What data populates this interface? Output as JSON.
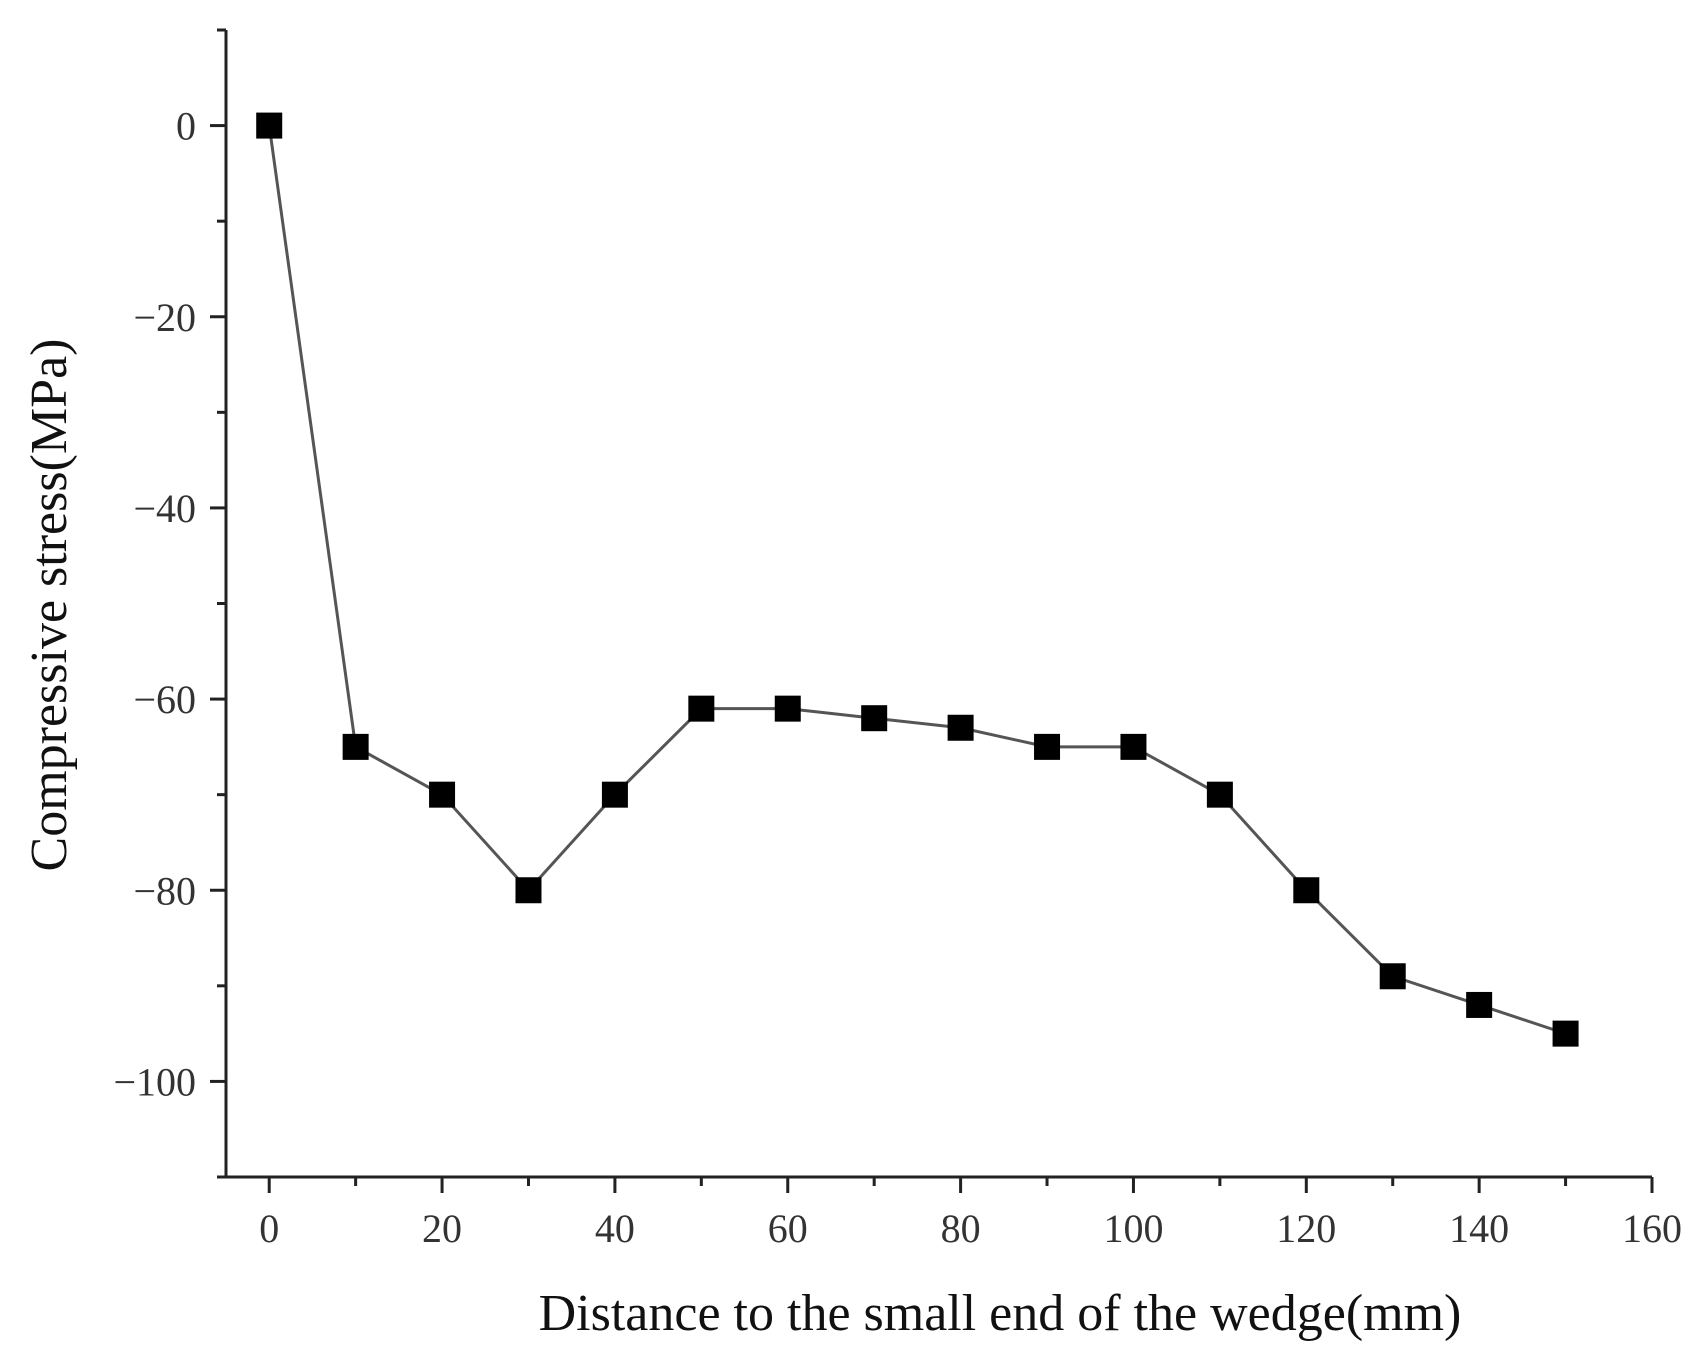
{
  "chart_data": {
    "type": "line",
    "title": "",
    "xlabel": "Distance to the small end of the wedge(mm)",
    "ylabel": "Compressive stress(MPa)",
    "xlim": [
      -5,
      160
    ],
    "ylim": [
      -110,
      10
    ],
    "xticks": [
      0,
      20,
      40,
      60,
      80,
      100,
      120,
      140,
      160
    ],
    "yticks": [
      0,
      -20,
      -40,
      -60,
      -80,
      -100
    ],
    "grid": false,
    "marker": "square",
    "series": [
      {
        "name": "Compressive stress",
        "color": "#000000",
        "line_color": "#555555",
        "x": [
          0,
          10,
          20,
          30,
          40,
          50,
          60,
          70,
          80,
          90,
          100,
          110,
          120,
          130,
          140,
          150
        ],
        "y": [
          0,
          -65,
          -70,
          -80,
          -70,
          -61,
          -61,
          -62,
          -63,
          -65,
          -65,
          -70,
          -80,
          -89,
          -92,
          -95
        ]
      }
    ]
  }
}
